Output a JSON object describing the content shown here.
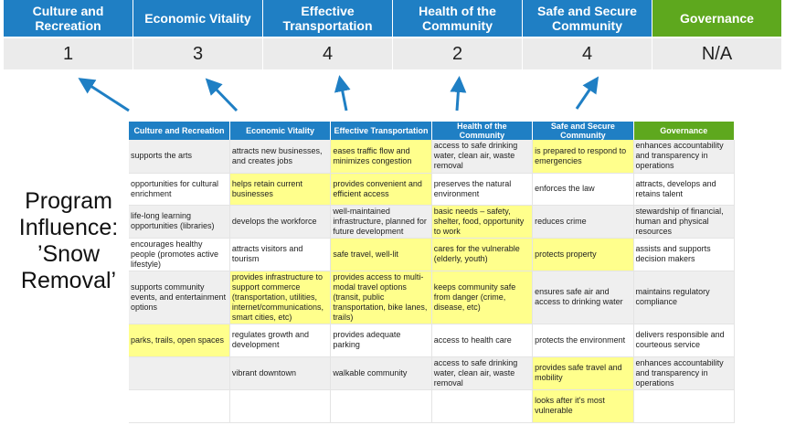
{
  "summary": {
    "headers": [
      "Culture and Recreation",
      "Economic Vitality",
      "Effective Transportation",
      "Health of the Community",
      "Safe and Secure Community",
      "Governance"
    ],
    "scores": [
      "1",
      "3",
      "4",
      "2",
      "4",
      "N/A"
    ]
  },
  "program_label": "Program Influence: ’Snow Removal’",
  "colors": {
    "header_blue": "#1f7fc4",
    "governance_green": "#5ea81e",
    "highlight_yellow": "#ffff8c",
    "arrow_blue": "#1f7fc4"
  },
  "table": {
    "headers": [
      "Culture and Recreation",
      "Economic Vitality",
      "Effective Transportation",
      "Health of the Community",
      "Safe and Secure Community",
      "Governance"
    ],
    "rows": [
      {
        "cells": [
          "supports the arts",
          "attracts new businesses, and creates jobs",
          "eases traffic flow and minimizes congestion",
          "access to safe drinking water, clean air, waste removal",
          "is prepared to respond to emergencies",
          "enhances accountability and transparency in operations"
        ],
        "highlighted": [
          2,
          4
        ]
      },
      {
        "cells": [
          "opportunities for cultural enrichment",
          "helps retain current businesses",
          "provides convenient and efficient access",
          "preserves the natural environment",
          "enforces the law",
          "attracts, develops and retains talent"
        ],
        "highlighted": [
          1,
          2
        ]
      },
      {
        "cells": [
          "life-long learning opportunities (libraries)",
          "develops the workforce",
          "well-maintained infrastructure, planned for future development",
          "basic needs – safety, shelter, food, opportunity to work",
          "reduces crime",
          "stewardship of financial, human and physical resources"
        ],
        "highlighted": [
          3
        ]
      },
      {
        "cells": [
          "encourages healthy people (promotes active lifestyle)",
          "attracts visitors and tourism",
          "safe travel, well-lit",
          "cares for the vulnerable (elderly, youth)",
          "protects property",
          "assists and supports decision makers"
        ],
        "highlighted": [
          2,
          3,
          4
        ]
      },
      {
        "cells": [
          "supports community events, and entertainment options",
          "provides infrastructure to support commerce (transportation, utilities, internet/communications, smart cities, etc)",
          "provides access to multi-modal travel options (transit, public transportation, bike lanes, trails)",
          "keeps community safe from danger (crime, disease, etc)",
          "ensures safe air and access to drinking water",
          "maintains regulatory compliance"
        ],
        "highlighted": [
          1,
          2,
          3
        ]
      },
      {
        "cells": [
          "parks, trails, open spaces",
          "regulates growth and development",
          "provides adequate parking",
          "access to health care",
          "protects the environment",
          "delivers responsible and courteous service"
        ],
        "highlighted": [
          0
        ]
      },
      {
        "cells": [
          "",
          "vibrant downtown",
          "walkable community",
          "access to safe drinking water, clean air, waste removal",
          "provides safe travel and mobility",
          "enhances accountability and transparency in operations"
        ],
        "highlighted": [
          4
        ]
      },
      {
        "cells": [
          "",
          "",
          "",
          "",
          "looks after it's most vulnerable",
          ""
        ],
        "highlighted": [
          4
        ]
      }
    ]
  }
}
